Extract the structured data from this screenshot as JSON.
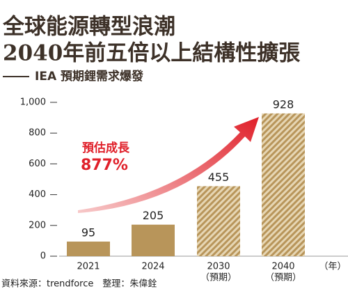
{
  "chart_data": {
    "type": "bar",
    "title_lines": [
      "全球能源轉型浪潮",
      "2040年前五倍以上結構性擴張"
    ],
    "subtitle": "IEA 預期鋰需求爆發",
    "categories": [
      "2021",
      "2024",
      "2030",
      "2040"
    ],
    "category_notes": [
      null,
      null,
      "（預期）",
      "（預期）"
    ],
    "x_unit": "（年）",
    "values": [
      95,
      205,
      455,
      928
    ],
    "hatched": [
      false,
      false,
      true,
      true
    ],
    "color": "#b8955a",
    "ylim": [
      0,
      1000
    ],
    "yticks": [
      0,
      200,
      400,
      600,
      800,
      {
        "value": 1000,
        "label": "1,000"
      }
    ],
    "annotation": {
      "label": "預估成長",
      "value_text": "877%",
      "color": "#e0202a"
    },
    "source": "資料來源：trendforce　整理：朱偉銓"
  }
}
